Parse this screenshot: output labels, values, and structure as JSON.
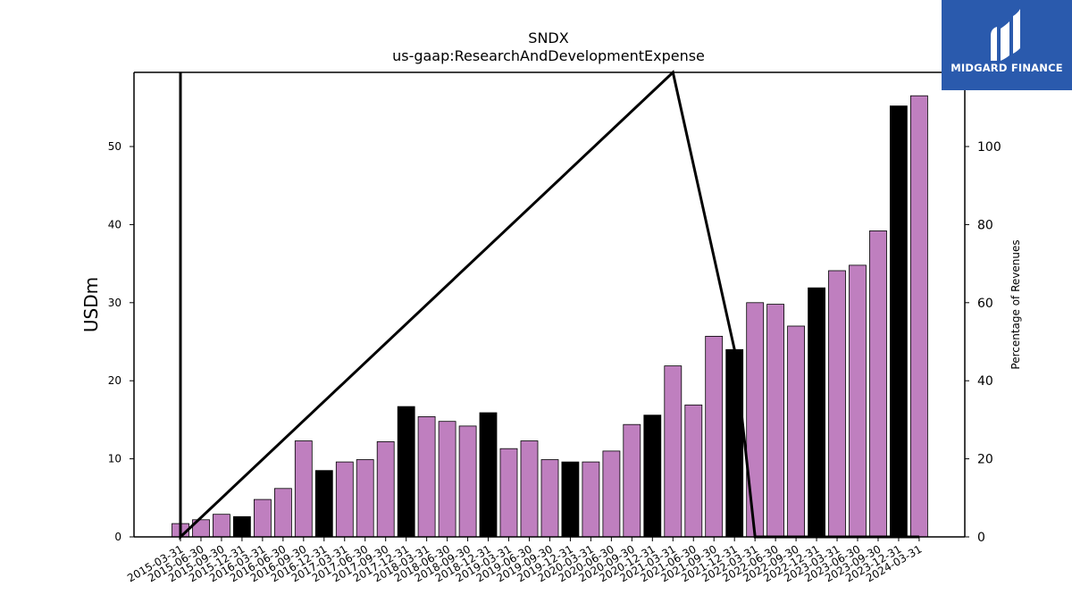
{
  "chart_data": {
    "type": "bar",
    "title": "SNDX",
    "subtitle": "us-gaap:ResearchAndDevelopmentExpense",
    "ylabel": "USDm",
    "ylabel_right": "Percentage of Revenues",
    "ylim": [
      0,
      59.5
    ],
    "ylim_right": [
      0,
      119
    ],
    "yticks": [
      0,
      10,
      20,
      30,
      40,
      50
    ],
    "yticks_right": [
      0,
      20,
      40,
      60,
      80,
      100
    ],
    "categories": [
      "2015-03-31",
      "2015-06-30",
      "2015-09-30",
      "2015-12-31",
      "2016-03-31",
      "2016-06-30",
      "2016-09-30",
      "2016-12-31",
      "2017-03-31",
      "2017-06-30",
      "2017-09-30",
      "2017-12-31",
      "2018-03-31",
      "2018-06-30",
      "2018-09-30",
      "2018-12-31",
      "2019-03-31",
      "2019-06-30",
      "2019-09-30",
      "2019-12-31",
      "2020-03-31",
      "2020-06-30",
      "2020-09-30",
      "2020-12-31",
      "2021-03-31",
      "2021-06-30",
      "2021-09-30",
      "2021-12-31",
      "2022-03-31",
      "2022-06-30",
      "2022-09-30",
      "2022-12-31",
      "2023-03-31",
      "2023-06-30",
      "2023-09-30",
      "2023-12-31",
      "2024-03-31"
    ],
    "values": [
      1.7,
      2.2,
      2.9,
      2.6,
      4.8,
      6.2,
      12.3,
      8.5,
      9.6,
      9.9,
      12.2,
      16.7,
      15.4,
      14.8,
      14.2,
      15.9,
      11.3,
      12.3,
      9.9,
      9.6,
      9.6,
      11.0,
      14.4,
      15.6,
      21.9,
      16.9,
      25.7,
      24.0,
      30.0,
      29.8,
      27.0,
      31.9,
      34.1,
      34.8,
      39.2,
      55.2,
      56.5
    ],
    "annual_flags": [
      false,
      false,
      false,
      true,
      false,
      false,
      false,
      true,
      false,
      false,
      false,
      true,
      false,
      false,
      false,
      true,
      false,
      false,
      false,
      true,
      false,
      false,
      false,
      true,
      false,
      false,
      false,
      true,
      false,
      false,
      false,
      true,
      false,
      false,
      false,
      true,
      false
    ],
    "series_right": {
      "x": [
        "2015-03-31",
        "2015-03-31",
        "2021-03-31",
        "2021-12-31",
        "2022-03-31",
        "2024-03-31"
      ],
      "values": [
        119,
        0,
        119,
        48,
        0,
        0
      ]
    },
    "colors": {
      "quarter_bar": "#bf7fbf",
      "annual_bar": "#000000",
      "line": "#000000"
    },
    "grid": false
  },
  "logo": {
    "text": "MIDGARD FINANCE",
    "background": "#2a5aad"
  }
}
